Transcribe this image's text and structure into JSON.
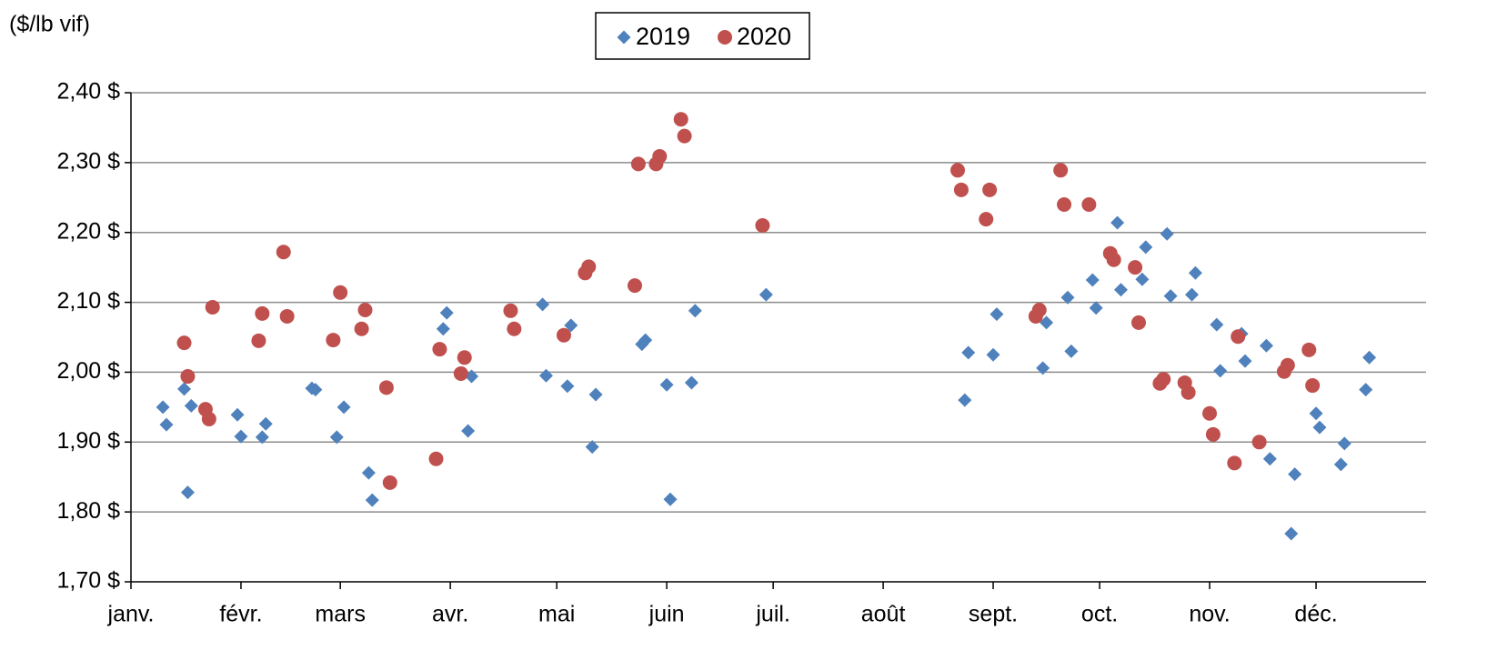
{
  "chart_data": {
    "type": "scatter",
    "y_label": "($/lb vif)",
    "xlim": [
      1,
      366
    ],
    "xticks": [
      {
        "value": 1,
        "label": "janv."
      },
      {
        "value": 32,
        "label": "févr."
      },
      {
        "value": 60,
        "label": "mars"
      },
      {
        "value": 91,
        "label": "avr."
      },
      {
        "value": 121,
        "label": "mai"
      },
      {
        "value": 152,
        "label": "juin"
      },
      {
        "value": 182,
        "label": "juil."
      },
      {
        "value": 213,
        "label": "août"
      },
      {
        "value": 244,
        "label": "sept."
      },
      {
        "value": 274,
        "label": "oct."
      },
      {
        "value": 305,
        "label": "nov."
      },
      {
        "value": 335,
        "label": "déc."
      }
    ],
    "ylim": [
      1.7,
      2.4
    ],
    "yticks": [
      {
        "value": 1.7,
        "label": "1,70 $"
      },
      {
        "value": 1.8,
        "label": "1,80 $"
      },
      {
        "value": 1.9,
        "label": "1,90 $"
      },
      {
        "value": 2.0,
        "label": "2,00 $"
      },
      {
        "value": 2.1,
        "label": "2,10 $"
      },
      {
        "value": 2.2,
        "label": "2,20 $"
      },
      {
        "value": 2.3,
        "label": "2,30 $"
      },
      {
        "value": 2.4,
        "label": "2,40 $"
      }
    ],
    "grid": true,
    "legend": "top",
    "series": [
      {
        "name": "2019",
        "color": "#4f81bd",
        "marker": "diamond",
        "x": [
          10,
          11,
          16,
          17,
          18,
          31,
          32,
          38,
          39,
          52,
          53,
          59,
          61,
          68,
          69,
          89,
          90,
          96,
          97,
          117,
          118,
          124,
          125,
          131,
          132,
          145,
          146,
          152,
          153,
          159,
          160,
          180,
          236,
          237,
          244,
          245,
          258,
          259,
          265,
          266,
          272,
          273,
          279,
          280,
          286,
          287,
          293,
          294,
          300,
          301,
          307,
          308,
          314,
          315,
          321,
          322,
          328,
          329,
          335,
          336,
          342,
          343,
          349,
          350
        ],
        "values": [
          1.95,
          1.925,
          1.976,
          1.828,
          1.952,
          1.939,
          1.908,
          1.907,
          1.926,
          1.977,
          1.975,
          1.907,
          1.95,
          1.856,
          1.817,
          2.062,
          2.085,
          1.916,
          1.994,
          2.097,
          1.995,
          1.98,
          2.067,
          1.893,
          1.968,
          2.04,
          2.046,
          1.982,
          1.818,
          1.985,
          2.088,
          2.111,
          1.96,
          2.028,
          2.025,
          2.083,
          2.006,
          2.071,
          2.107,
          2.03,
          2.132,
          2.092,
          2.214,
          2.118,
          2.133,
          2.179,
          2.198,
          2.109,
          2.111,
          2.142,
          2.068,
          2.002,
          2.055,
          2.016,
          2.038,
          1.876,
          1.769,
          1.854,
          1.941,
          1.921,
          1.868,
          1.898,
          1.975,
          2.021
        ]
      },
      {
        "name": "2020",
        "color": "#c0504d",
        "marker": "circle",
        "x": [
          16,
          17,
          22,
          23,
          24,
          37,
          38,
          44,
          45,
          58,
          60,
          66,
          67,
          73,
          74,
          87,
          88,
          94,
          95,
          108,
          109,
          123,
          129,
          130,
          143,
          144,
          149,
          150,
          156,
          157,
          179,
          234,
          235,
          242,
          243,
          256,
          257,
          263,
          264,
          271,
          277,
          278,
          284,
          285,
          291,
          292,
          298,
          299,
          305,
          306,
          312,
          313,
          319,
          326,
          327,
          333,
          334
        ],
        "values": [
          2.042,
          1.994,
          1.947,
          1.933,
          2.093,
          2.045,
          2.084,
          2.172,
          2.08,
          2.046,
          2.114,
          2.062,
          2.089,
          1.978,
          1.842,
          1.876,
          2.033,
          1.998,
          2.021,
          2.088,
          2.062,
          2.053,
          2.142,
          2.151,
          2.124,
          2.298,
          2.298,
          2.309,
          2.362,
          2.338,
          2.21,
          2.289,
          2.261,
          2.219,
          2.261,
          2.08,
          2.089,
          2.289,
          2.24,
          2.24,
          2.17,
          2.161,
          2.15,
          2.071,
          1.984,
          1.99,
          1.985,
          1.971,
          1.941,
          1.911,
          1.87,
          2.051,
          1.9,
          2.001,
          2.01,
          2.032,
          1.981
        ]
      }
    ]
  }
}
